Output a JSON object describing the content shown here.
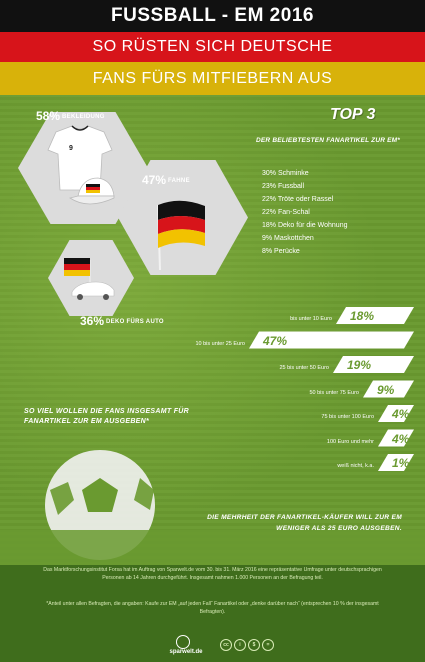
{
  "header": {
    "line1": "FUSSBALL - EM 2016",
    "line2": "SO RÜSTEN SICH DEUTSCHE",
    "line3": "FANS FÜRS MITFIEBERN AUS"
  },
  "hexes": [
    {
      "pct": "58%",
      "label": "BEKLEIDUNG"
    },
    {
      "pct": "47%",
      "label": "FAHNE"
    },
    {
      "pct": "36%",
      "label": "DEKO FÜRS AUTO"
    }
  ],
  "jersey_number": "9",
  "top3": {
    "title": "TOP 3",
    "subtitle": "DER BELIEBTESTEN FANARTIKEL ZUR EM*",
    "items": [
      "30% Schminke",
      "23% Fussball",
      "22% Tröte oder Rassel",
      "22% Fan-Schal",
      "18% Deko für die Wohnung",
      "9% Maskottchen",
      "8% Perücke"
    ]
  },
  "spend": {
    "question": "SO VIEL WOLLEN DIE FANS INSGESAMT FÜR FANARTIKEL ZUR EM AUSGEBEN*",
    "bars": [
      {
        "label": "bis unter 10 Euro",
        "value": "18%",
        "pct": 18
      },
      {
        "label": "10 bis unter 25 Euro",
        "value": "47%",
        "pct": 47
      },
      {
        "label": "25 bis unter 50 Euro",
        "value": "19%",
        "pct": 19
      },
      {
        "label": "50 bis unter 75 Euro",
        "value": "9%",
        "pct": 9
      },
      {
        "label": "75 bis unter 100 Euro",
        "value": "4%",
        "pct": 4
      },
      {
        "label": "100 Euro und mehr",
        "value": "4%",
        "pct": 4
      },
      {
        "label": "weiß nicht, k.a.",
        "value": "1%",
        "pct": 1
      }
    ]
  },
  "majority": "DIE MEHRHEIT DER FANARTIKEL-KÄUFER WILL ZUR EM WENIGER ALS 25 EURO AUSGEBEN.",
  "footer": {
    "method": "Das Marktforschungsinstitut Forsa hat im Auftrag von Sparwelt.de vom 30. bis 31. März 2016 eine repräsentative Umfrage unter deutschsprachigen Personen ab 14 Jahren durchgeführt. Insgesamt nahmen 1.000 Personen an der Befragung teil.",
    "note": "*Anteil unter allen Befragten, die angaben: Kaufe zur EM „auf jeden Fall“ Fanartikel oder „denke darüber nach“ (entsprechen 10 % der insgesamt Befragten).",
    "logo": "sparwelt.de",
    "cc": [
      "cc",
      "i",
      "$",
      "="
    ]
  }
}
